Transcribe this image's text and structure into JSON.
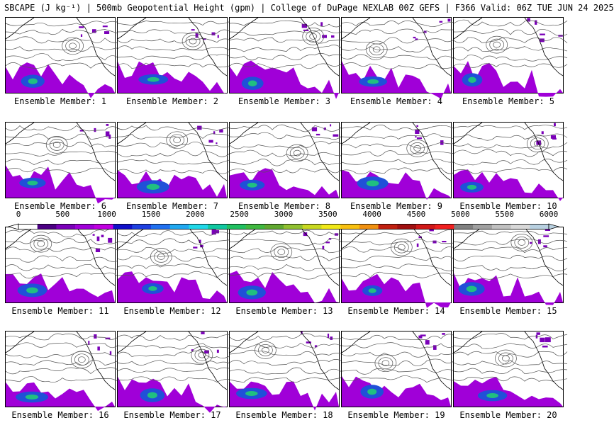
{
  "title": "SBCAPE (J kg⁻¹) | 500mb Geopotential Height (gpm) | College of DuPage NEXLAB 00Z GEFS | F366 Valid: 06Z TUE JUN 24 2025",
  "label_prefix": "Ensemble Member: ",
  "members": [
    "1",
    "2",
    "3",
    "4",
    "5",
    "6",
    "7",
    "8",
    "9",
    "10",
    "11",
    "12",
    "13",
    "14",
    "15",
    "16",
    "17",
    "18",
    "19",
    "20"
  ],
  "colorbar": {
    "ticks": [
      "0",
      "500",
      "1000",
      "1500",
      "2000",
      "2500",
      "3000",
      "3500",
      "4000",
      "4500",
      "5000",
      "5500",
      "6000"
    ],
    "range": [
      0,
      6000
    ],
    "colors": [
      "#ffffff",
      "#4b0082",
      "#7a00b8",
      "#a000d8",
      "#c000e0",
      "#1010c8",
      "#1e40e0",
      "#2070f0",
      "#20a8f0",
      "#20d8e8",
      "#10c8a0",
      "#20c060",
      "#40b840",
      "#60a830",
      "#90c030",
      "#c8d820",
      "#f0e818",
      "#f8c010",
      "#f09010",
      "#c02010",
      "#a01010",
      "#d01818",
      "#f02020",
      "#808080",
      "#a0a0a0",
      "#c0c0c0",
      "#d8d8d8",
      "#b8d0e0"
    ],
    "arrow_color": "#ffffff"
  },
  "colors": {
    "cape_low": "#a000d8",
    "cape_mid": "#7a00b8",
    "cape_blue": "#2050d8",
    "cape_green": "#20c080",
    "contour": "#555555",
    "coast": "#000000"
  }
}
